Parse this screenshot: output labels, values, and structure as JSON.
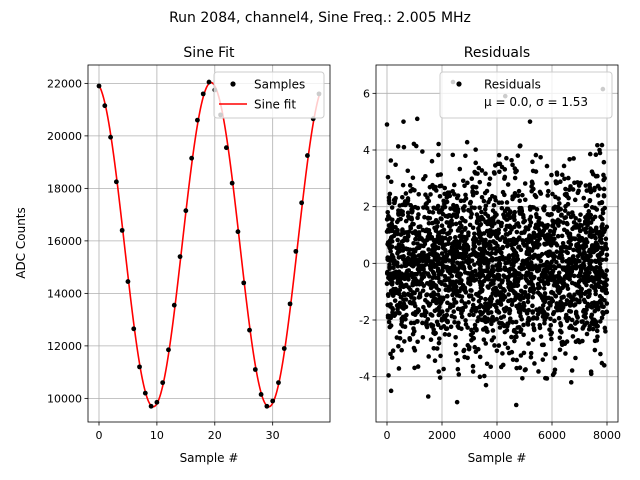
{
  "figure": {
    "suptitle": "Run 2084, channel4, Sine Freq.: 2.005 MHz"
  },
  "chart_data": [
    {
      "type": "line",
      "title": "Sine Fit",
      "xlabel": "Sample #",
      "ylabel": "ADC Counts",
      "xlim": [
        -1.9,
        39.9
      ],
      "ylim": [
        9100,
        22700
      ],
      "xticks": [
        0,
        10,
        20,
        30
      ],
      "yticks": [
        10000,
        12000,
        14000,
        16000,
        18000,
        20000,
        22000
      ],
      "grid": true,
      "legend": "top-right",
      "series": [
        {
          "name": "Samples",
          "style": "points",
          "color": "#000000",
          "x": [
            0,
            1,
            2,
            3,
            4,
            5,
            6,
            7,
            8,
            9,
            10,
            11,
            12,
            13,
            14,
            15,
            16,
            17,
            18,
            19,
            20,
            21,
            22,
            23,
            24,
            25,
            26,
            27,
            28,
            29,
            30,
            31,
            32,
            33,
            34,
            35,
            36,
            37,
            38
          ],
          "y": [
            21900,
            21150,
            19950,
            18250,
            16400,
            14450,
            12650,
            11200,
            10200,
            9700,
            9850,
            10600,
            11850,
            13550,
            15400,
            17150,
            19150,
            20600,
            21600,
            22050,
            21750,
            20800,
            19550,
            18200,
            16350,
            14400,
            12600,
            11100,
            10150,
            9700,
            9900,
            10600,
            11900,
            13600,
            15600,
            17450,
            19250,
            20650,
            21600
          ]
        },
        {
          "name": "Sine fit",
          "style": "line",
          "color": "#ff0000",
          "fit": {
            "mean": 15855,
            "amplitude": 6175,
            "period": 19.95,
            "phase_x0": 19.35
          },
          "x_range": [
            0,
            38
          ]
        }
      ]
    },
    {
      "type": "scatter",
      "title": "Residuals",
      "xlabel": "Sample #",
      "ylabel": "",
      "xlim": [
        -400,
        8400
      ],
      "ylim": [
        -5.6,
        7.0
      ],
      "xticks": [
        0,
        2000,
        4000,
        6000,
        8000
      ],
      "yticks": [
        -4,
        -2,
        0,
        2,
        4,
        6
      ],
      "grid": true,
      "legend": "top-right",
      "series": [
        {
          "name": "Residuals",
          "color": "#000000",
          "mean": 0.0,
          "sigma": 1.53,
          "n_points": 8000,
          "legend_stats": "μ = 0.0, σ = 1.53"
        }
      ],
      "outliers": [
        {
          "x": 2400,
          "y": 6.4
        },
        {
          "x": 7850,
          "y": 6.15
        },
        {
          "x": 0,
          "y": 4.9
        },
        {
          "x": 600,
          "y": 5.0
        },
        {
          "x": 1100,
          "y": 5.1
        },
        {
          "x": 5200,
          "y": 5.0
        },
        {
          "x": 2550,
          "y": -4.9
        },
        {
          "x": 4700,
          "y": -5.0
        },
        {
          "x": 150,
          "y": -4.5
        },
        {
          "x": 3600,
          "y": -4.3
        },
        {
          "x": 6700,
          "y": -4.2
        },
        {
          "x": 7900,
          "y": -3.6
        },
        {
          "x": 4300,
          "y": 5.9
        },
        {
          "x": 1500,
          "y": -4.7
        }
      ]
    }
  ]
}
